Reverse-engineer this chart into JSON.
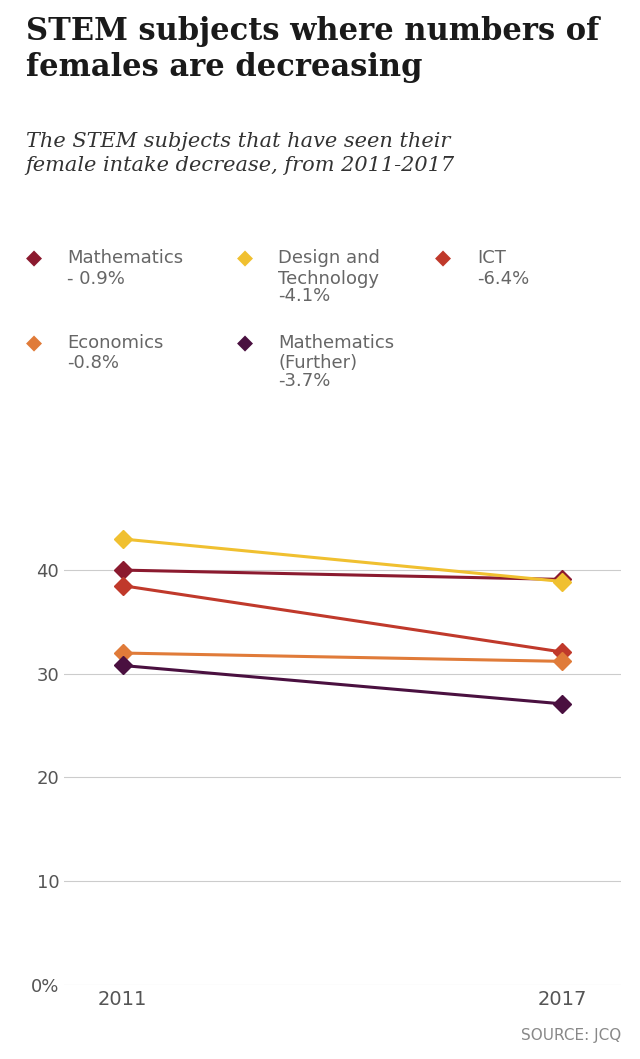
{
  "title": "STEM subjects where numbers of\nfemales are decreasing",
  "subtitle": "The STEM subjects that have seen their\nfemale intake decrease, from 2011-2017",
  "source": "SOURCE: JCQ",
  "years": [
    2011,
    2017
  ],
  "series": [
    {
      "label": "Mathematics",
      "pct_change": "- 0.9%",
      "color": "#8B1A2F",
      "values": [
        40.0,
        39.1
      ]
    },
    {
      "label": "Design and\nTechnology",
      "pct_change": "-4.1%",
      "color": "#F0C030",
      "values": [
        43.0,
        38.9
      ]
    },
    {
      "label": "ICT",
      "pct_change": "-6.4%",
      "color": "#C0392B",
      "values": [
        38.5,
        32.1
      ]
    },
    {
      "label": "Economics",
      "pct_change": "-0.8%",
      "color": "#E07B39",
      "values": [
        32.0,
        31.2
      ]
    },
    {
      "label": "Mathematics\n(Further)",
      "pct_change": "-3.7%",
      "color": "#4A1040",
      "values": [
        30.8,
        27.1
      ]
    }
  ],
  "yticks": [
    0,
    10,
    20,
    30,
    40
  ],
  "ytick_labels": [
    "0%",
    "10",
    "20",
    "30",
    "40"
  ],
  "ylim": [
    0,
    48
  ],
  "background_color": "#FFFFFF",
  "grid_color": "#CCCCCC",
  "title_fontsize": 22,
  "subtitle_fontsize": 15,
  "legend_fontsize": 13,
  "axis_fontsize": 13,
  "source_fontsize": 11,
  "legend_row1": [
    {
      "label": "Mathematics",
      "pct": "- 0.9%",
      "color": "#8B1A2F",
      "col": 0
    },
    {
      "label": "Design and\nTechnology",
      "pct": "-4.1%",
      "color": "#F0C030",
      "col": 1
    },
    {
      "label": "ICT",
      "pct": "-6.4%",
      "color": "#C0392B",
      "col": 2
    }
  ],
  "legend_row2": [
    {
      "label": "Economics",
      "pct": "-0.8%",
      "color": "#E07B39",
      "col": 0
    },
    {
      "label": "Mathematics\n(Further)",
      "pct": "-3.7%",
      "color": "#4A1040",
      "col": 1
    }
  ]
}
